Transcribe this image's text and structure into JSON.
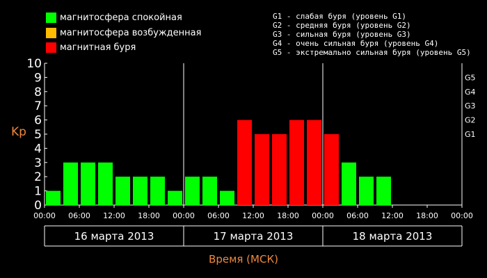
{
  "legend": [
    {
      "label": "магнитосфера спокойная",
      "color": "#00ff00"
    },
    {
      "label": "магнитосфера возбужденная",
      "color": "#ffbb00"
    },
    {
      "label": "магнитная буря",
      "color": "#ff0000"
    }
  ],
  "storm_levels": [
    "G1 - слабая буря (уровень G1)",
    "G2 - средняя буря (уровень G2)",
    "G3 - сильная буря (уровень G3)",
    "G4 - очень сильная буря (уровень G4)",
    "G5 - экстремально сильная буря (уровень G5)"
  ],
  "colors": {
    "quiet": "#00ff00",
    "active": "#ffbb00",
    "storm": "#ff0000",
    "axis_label": "#f0883c"
  },
  "chart_data": {
    "type": "bar",
    "ylabel": "Kp",
    "xlabel": "Время (МСК)",
    "ylim": [
      0,
      10
    ],
    "yticks": [
      "0",
      "1",
      "2",
      "3",
      "4",
      "5",
      "6",
      "7",
      "8",
      "9",
      "10"
    ],
    "right_ticks": [
      {
        "label": "G1",
        "value": 5
      },
      {
        "label": "G2",
        "value": 6
      },
      {
        "label": "G3",
        "value": 7
      },
      {
        "label": "G4",
        "value": 8
      },
      {
        "label": "G5",
        "value": 9
      }
    ],
    "xticks": [
      "00:00",
      "06:00",
      "12:00",
      "18:00",
      "00:00",
      "06:00",
      "12:00",
      "18:00",
      "00:00",
      "06:00",
      "12:00",
      "18:00",
      "00:00"
    ],
    "days": [
      "16 марта 2013",
      "17 марта 2013",
      "18 марта 2013"
    ],
    "values": [
      1,
      3,
      3,
      3,
      2,
      2,
      2,
      1,
      2,
      2,
      1,
      6,
      5,
      5,
      6,
      6,
      5,
      3,
      2,
      2
    ],
    "statuses": [
      "quiet",
      "quiet",
      "quiet",
      "quiet",
      "quiet",
      "quiet",
      "quiet",
      "quiet",
      "quiet",
      "quiet",
      "quiet",
      "storm",
      "storm",
      "storm",
      "storm",
      "storm",
      "storm",
      "quiet",
      "quiet",
      "quiet"
    ]
  }
}
